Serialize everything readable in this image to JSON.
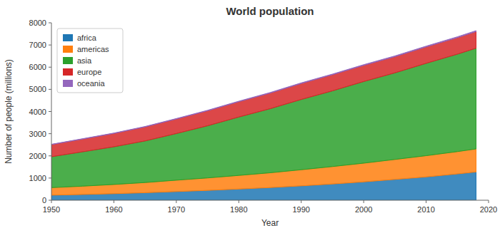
{
  "chart_data": {
    "type": "area",
    "stacked": true,
    "title": "World population",
    "xlabel": "Year",
    "ylabel": "Number of people (millions)",
    "x": [
      1950,
      1955,
      1960,
      1965,
      1970,
      1975,
      1980,
      1985,
      1990,
      1995,
      2000,
      2005,
      2010,
      2015,
      2018
    ],
    "series": [
      {
        "name": "africa",
        "color": "#1f77b4",
        "values": [
          228,
          259,
          295,
          339,
          390,
          444,
          504,
          570,
          647,
          733,
          828,
          938,
          1051,
          1186,
          1275
        ]
      },
      {
        "name": "americas",
        "color": "#ff7f0e",
        "values": [
          339,
          375,
          415,
          458,
          513,
          561,
          614,
          667,
          727,
          785,
          843,
          900,
          957,
          1006,
          1038
        ]
      },
      {
        "name": "asia",
        "color": "#2ca02c",
        "values": [
          1394,
          1549,
          1699,
          1876,
          2103,
          2351,
          2632,
          2887,
          3168,
          3413,
          3680,
          3904,
          4164,
          4393,
          4541
        ]
      },
      {
        "name": "europe",
        "color": "#d62728",
        "values": [
          549,
          576,
          604,
          634,
          657,
          678,
          693,
          706,
          722,
          728,
          730,
          732,
          740,
          745,
          751
        ]
      },
      {
        "name": "oceania",
        "color": "#9467bd",
        "values": [
          13,
          15,
          16,
          18,
          20,
          21,
          23,
          25,
          27,
          29,
          31,
          33,
          36,
          39,
          41
        ]
      }
    ],
    "xlim": [
      1950,
      2020
    ],
    "ylim": [
      0,
      8000
    ],
    "xticks": [
      1950,
      1960,
      1970,
      1980,
      1990,
      2000,
      2010,
      2020
    ],
    "yticks": [
      0,
      1000,
      2000,
      3000,
      4000,
      5000,
      6000,
      7000,
      8000
    ],
    "grid": false,
    "legend": "upper left"
  }
}
